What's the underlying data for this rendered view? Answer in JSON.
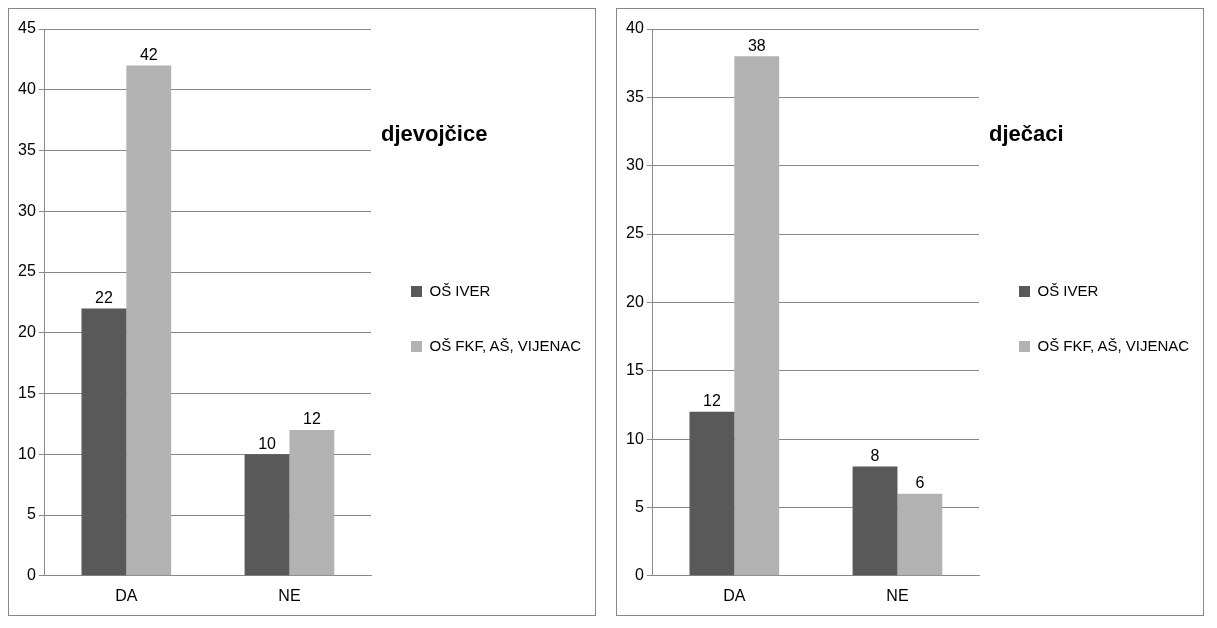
{
  "chart_data": [
    {
      "type": "bar",
      "title": "djevojčice",
      "categories": [
        "DA",
        "NE"
      ],
      "series": [
        {
          "name": "OŠ IVER",
          "color": "#595959",
          "values": [
            22,
            10
          ]
        },
        {
          "name": "OŠ FKF, AŠ, VIJENAC",
          "color": "#b2b2b2",
          "values": [
            42,
            12
          ]
        }
      ],
      "ylim": [
        0,
        45
      ],
      "yticks": [
        0,
        5,
        10,
        15,
        20,
        25,
        30,
        35,
        40,
        45
      ],
      "grid": "y",
      "legend": "right",
      "data_labels": true
    },
    {
      "type": "bar",
      "title": "dječaci",
      "categories": [
        "DA",
        "NE"
      ],
      "series": [
        {
          "name": "OŠ IVER",
          "color": "#595959",
          "values": [
            12,
            8
          ]
        },
        {
          "name": "OŠ FKF, AŠ, VIJENAC",
          "color": "#b2b2b2",
          "values": [
            38,
            6
          ]
        }
      ],
      "ylim": [
        0,
        40
      ],
      "yticks": [
        0,
        5,
        10,
        15,
        20,
        25,
        30,
        35,
        40
      ],
      "grid": "y",
      "legend": "right",
      "data_labels": true
    }
  ]
}
